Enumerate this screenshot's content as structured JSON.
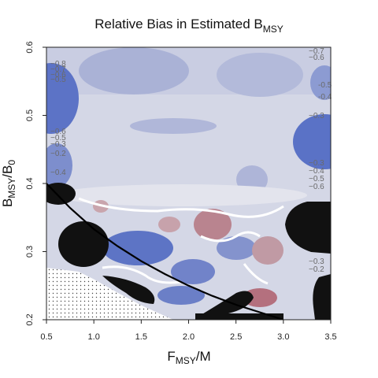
{
  "chart_data": {
    "type": "heatmap",
    "title": {
      "main": "Relative Bias in Estimated B",
      "sub": "MSY"
    },
    "xlabel": {
      "main": "F",
      "sub": "MSY",
      "suffix": "/M"
    },
    "ylabel": {
      "main": "B",
      "sub": "MSY",
      "mid": "/B",
      "sub2": "0"
    },
    "xlim": [
      0.5,
      3.5
    ],
    "ylim": [
      0.2,
      0.6
    ],
    "x_ticks": [
      0.5,
      1.0,
      1.5,
      2.0,
      2.5,
      3.0,
      3.5
    ],
    "x_tick_labels": [
      "0.5",
      "1.0",
      "1.5",
      "2.0",
      "2.5",
      "3.0",
      "3.5"
    ],
    "y_ticks": [
      0.2,
      0.3,
      0.4,
      0.5,
      0.6
    ],
    "y_tick_labels": [
      "0.2",
      "0.3",
      "0.4",
      "0.5",
      "0.6"
    ],
    "colors": {
      "negative_bias": "#5a6fc4",
      "near_zero": "#d8dbe8",
      "positive_bias": "#b8707e",
      "zero_contour": "#ffffff",
      "masked_region": "#111111",
      "infeasible_region": "#ffffff",
      "boundary_curve": "#000000"
    },
    "boundary_curve": [
      [
        0.5,
        0.4
      ],
      [
        0.75,
        0.364
      ],
      [
        1.0,
        0.333
      ],
      [
        1.25,
        0.308
      ],
      [
        1.5,
        0.286
      ],
      [
        1.75,
        0.267
      ],
      [
        2.0,
        0.25
      ],
      [
        2.25,
        0.235
      ],
      [
        2.5,
        0.222
      ],
      [
        2.75,
        0.211
      ],
      [
        3.0,
        0.2
      ]
    ],
    "right_contour_labels": [
      "-0.5",
      "-0.4"
    ]
  }
}
